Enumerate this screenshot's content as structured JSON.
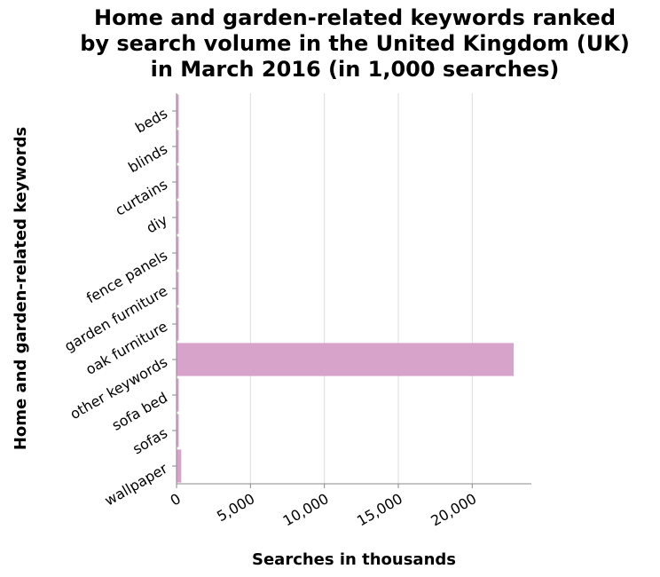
{
  "chart_data": {
    "type": "bar",
    "orientation": "horizontal",
    "title_lines": [
      "Home and garden-related keywords ranked",
      "by search volume in the United Kingdom (UK)",
      "in March 2016 (in 1,000 searches)"
    ],
    "xlabel": "Searches in thousands",
    "ylabel": "Home and garden-related keywords",
    "categories": [
      "beds",
      "blinds",
      "curtains",
      "diy",
      "fence panels",
      "garden furniture",
      "oak furniture",
      "other keywords",
      "sofa bed",
      "sofas",
      "wallpaper"
    ],
    "values": [
      90,
      70,
      80,
      150,
      80,
      140,
      100,
      22800,
      60,
      70,
      320
    ],
    "xlim": [
      0,
      24000
    ],
    "xticks": [
      0,
      5000,
      10000,
      15000,
      20000
    ],
    "xtick_labels": [
      "0",
      "5,000",
      "10,000",
      "15,000",
      "20,000"
    ],
    "grid": "vertical",
    "bar_color": "#d8a3cb"
  }
}
